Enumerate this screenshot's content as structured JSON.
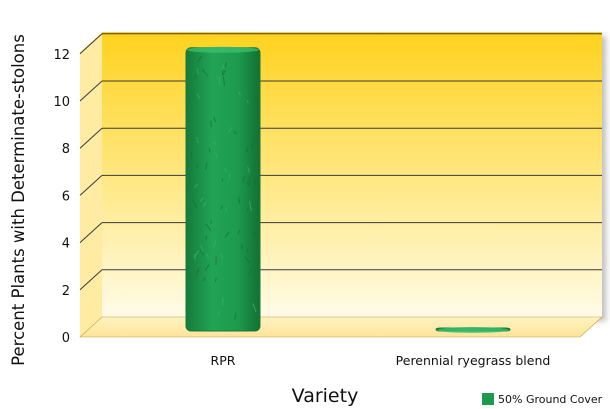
{
  "colors": {
    "series": "#1d9a4e",
    "series_dark": "#157a3b",
    "back_wall_top": "#ffd21e",
    "back_wall_bottom": "#fffbe8",
    "grid": "#3a3a3a"
  },
  "chart_data": {
    "type": "bar",
    "categories": [
      "RPR",
      "Perennial ryegrass blend"
    ],
    "series": [
      {
        "name": "50% Ground Cover",
        "values": [
          12.0,
          0.1
        ]
      }
    ],
    "xlabel": "Variety",
    "ylabel": "Percent Plants with Determinate-stolons",
    "yticks": [
      0,
      2,
      4,
      6,
      8,
      10,
      12
    ],
    "ylim": [
      0,
      13
    ],
    "grid": true,
    "legend_position": "bottom-right",
    "three_d": true
  }
}
